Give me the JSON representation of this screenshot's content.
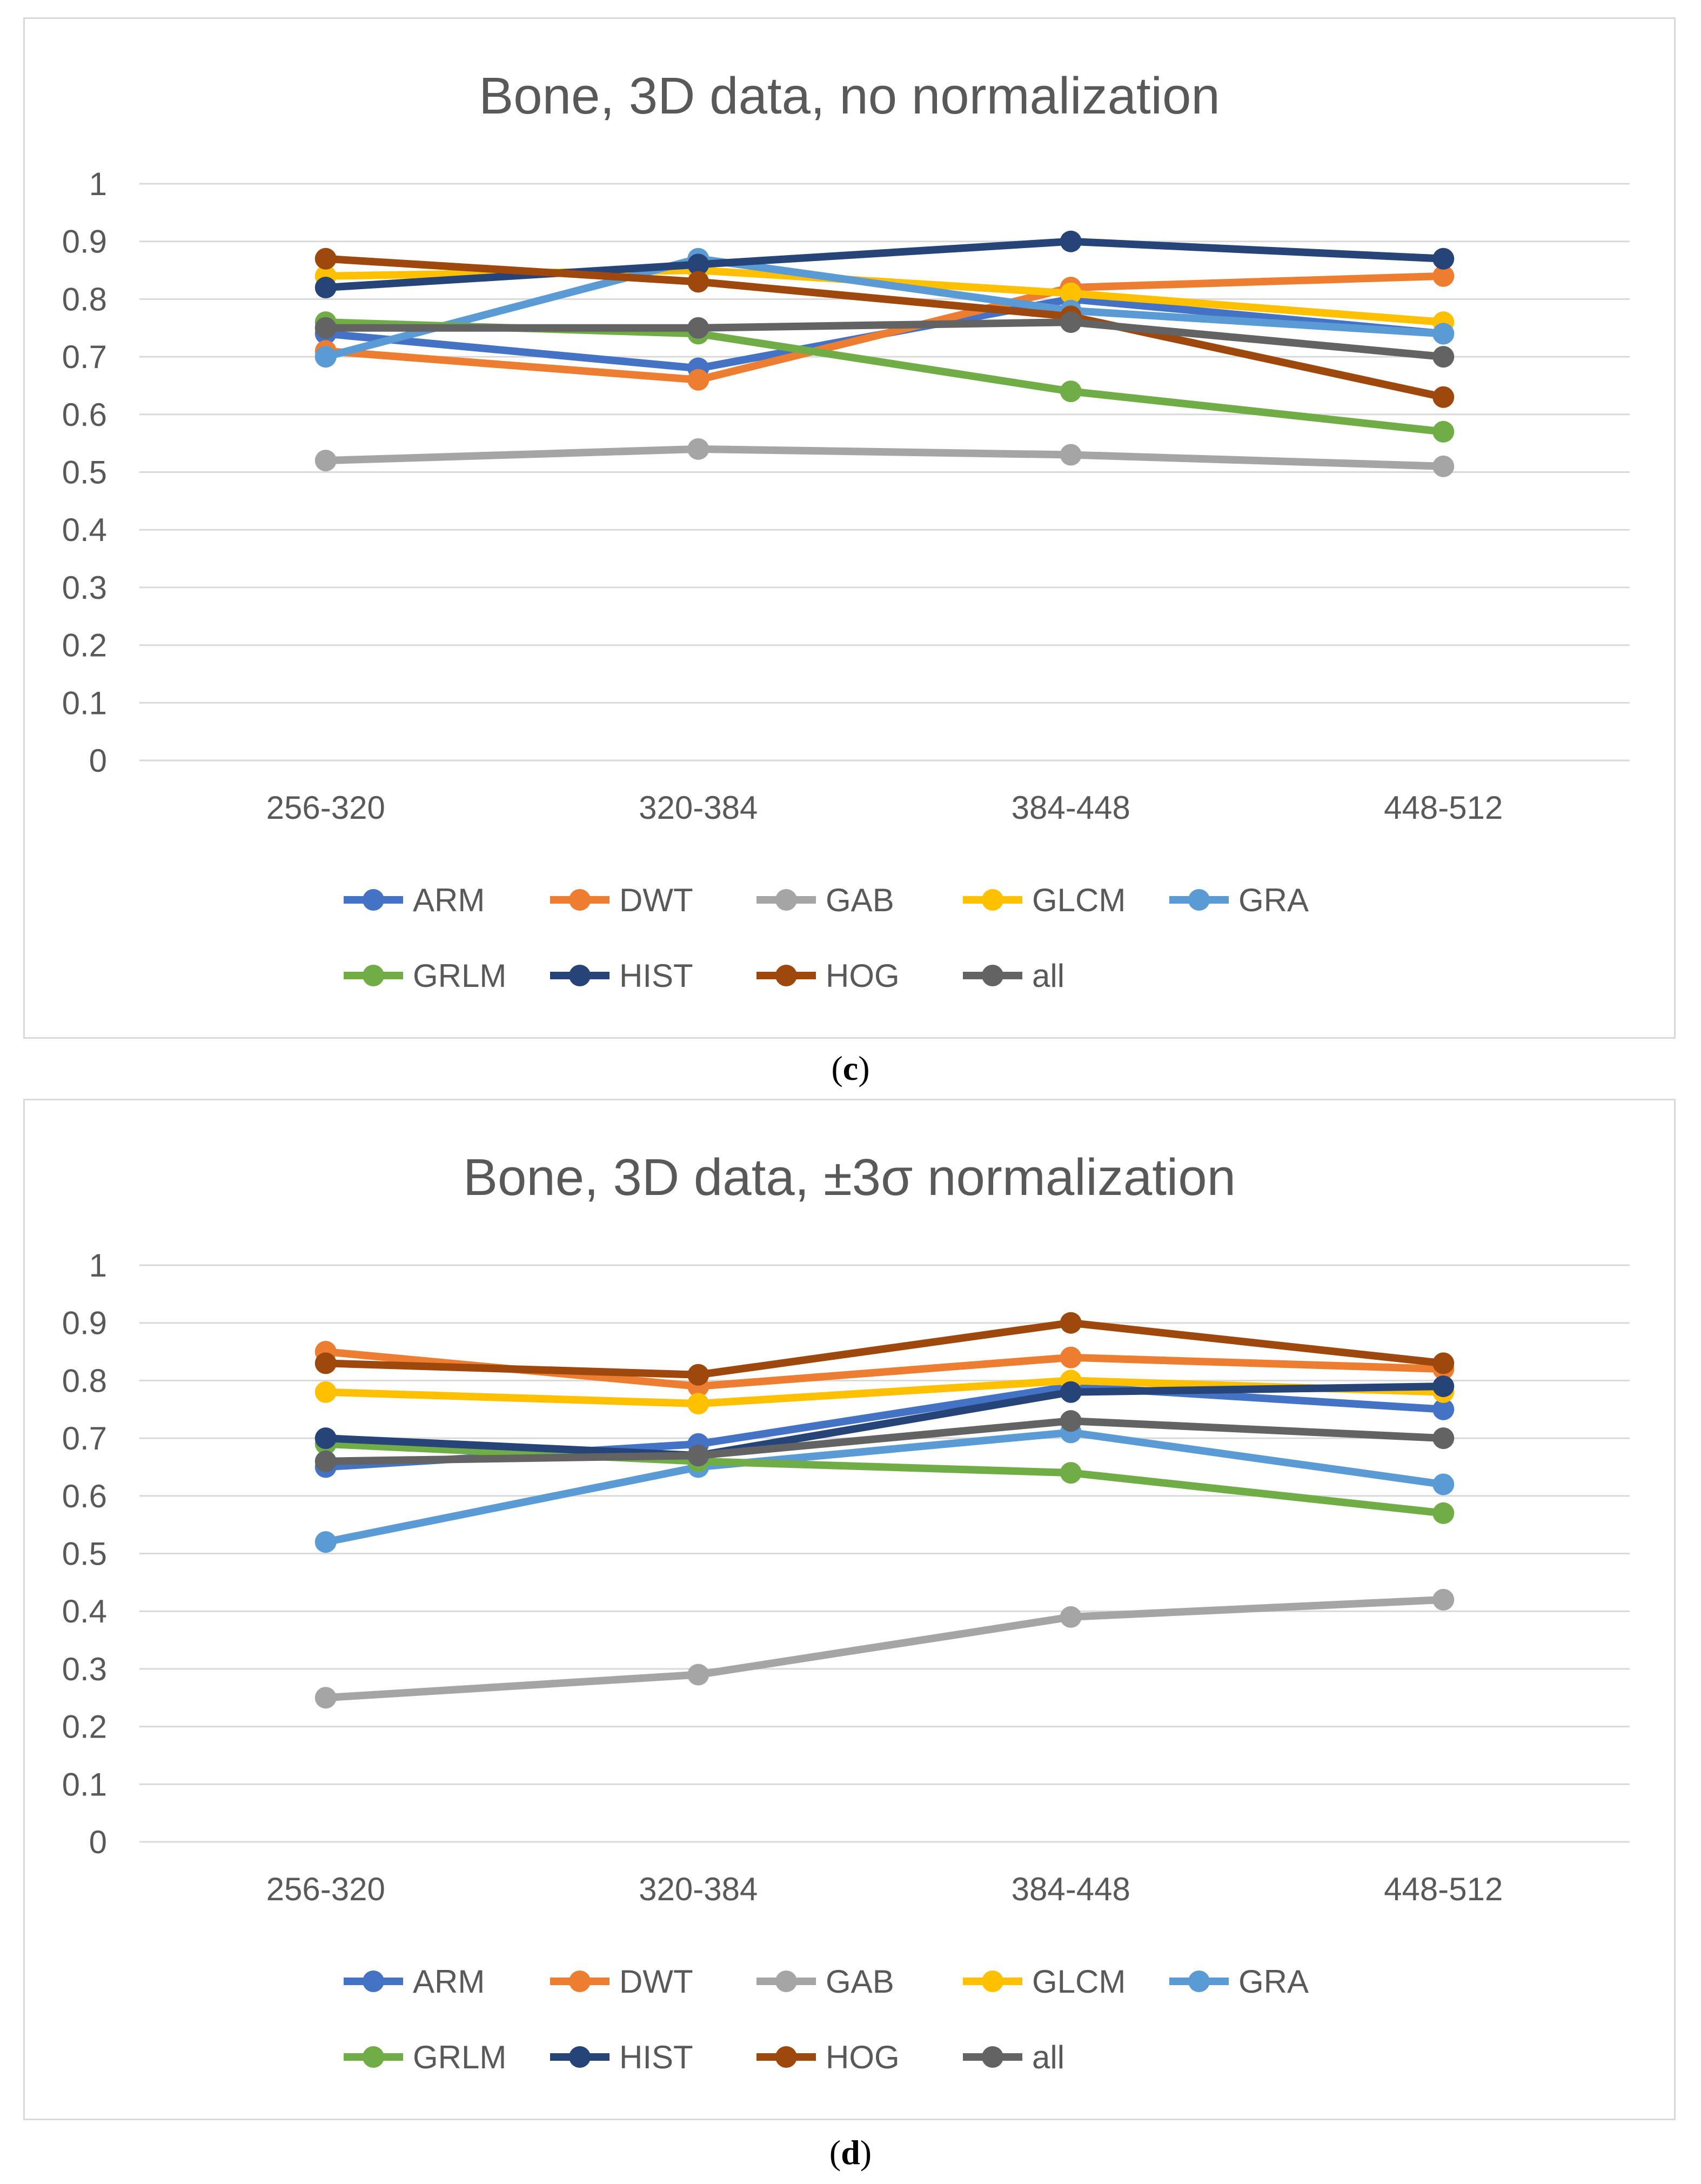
{
  "panel_labels": [
    "c",
    "d"
  ],
  "chart_data": [
    {
      "type": "line",
      "title": "Bone, 3D data, no normalization",
      "xlabel": "",
      "ylabel": "",
      "categories": [
        "256-320",
        "320-384",
        "384-448",
        "448-512"
      ],
      "ylim": [
        0,
        1
      ],
      "yticks": [
        "0",
        "0.1",
        "0.2",
        "0.3",
        "0.4",
        "0.5",
        "0.6",
        "0.7",
        "0.8",
        "0.9",
        "1"
      ],
      "grid": "horizontal",
      "legend_position": "bottom",
      "series": [
        {
          "name": "ARM",
          "color": "#4472C4",
          "values": [
            0.74,
            0.68,
            0.8,
            0.74
          ]
        },
        {
          "name": "DWT",
          "color": "#ED7D31",
          "values": [
            0.71,
            0.66,
            0.82,
            0.84
          ]
        },
        {
          "name": "GAB",
          "color": "#A5A5A5",
          "values": [
            0.52,
            0.54,
            0.53,
            0.51
          ]
        },
        {
          "name": "GLCM",
          "color": "#FFC000",
          "values": [
            0.84,
            0.85,
            0.81,
            0.76
          ]
        },
        {
          "name": "GRA",
          "color": "#5B9BD5",
          "values": [
            0.7,
            0.87,
            0.78,
            0.74
          ]
        },
        {
          "name": "GRLM",
          "color": "#70AD47",
          "values": [
            0.76,
            0.74,
            0.64,
            0.57
          ]
        },
        {
          "name": "HIST",
          "color": "#264478",
          "values": [
            0.82,
            0.86,
            0.9,
            0.87
          ]
        },
        {
          "name": "HOG",
          "color": "#9E480E",
          "values": [
            0.87,
            0.83,
            0.77,
            0.63
          ]
        },
        {
          "name": "all",
          "color": "#636363",
          "values": [
            0.75,
            0.75,
            0.76,
            0.7
          ]
        }
      ]
    },
    {
      "type": "line",
      "title": "Bone, 3D data, ±3σ normalization",
      "xlabel": "",
      "ylabel": "",
      "categories": [
        "256-320",
        "320-384",
        "384-448",
        "448-512"
      ],
      "ylim": [
        0,
        1
      ],
      "yticks": [
        "0",
        "0.1",
        "0.2",
        "0.3",
        "0.4",
        "0.5",
        "0.6",
        "0.7",
        "0.8",
        "0.9",
        "1"
      ],
      "grid": "horizontal",
      "legend_position": "bottom",
      "series": [
        {
          "name": "ARM",
          "color": "#4472C4",
          "values": [
            0.65,
            0.69,
            0.79,
            0.75
          ]
        },
        {
          "name": "DWT",
          "color": "#ED7D31",
          "values": [
            0.85,
            0.79,
            0.84,
            0.82
          ]
        },
        {
          "name": "GAB",
          "color": "#A5A5A5",
          "values": [
            0.25,
            0.29,
            0.39,
            0.42
          ]
        },
        {
          "name": "GLCM",
          "color": "#FFC000",
          "values": [
            0.78,
            0.76,
            0.8,
            0.78
          ]
        },
        {
          "name": "GRA",
          "color": "#5B9BD5",
          "values": [
            0.52,
            0.65,
            0.71,
            0.62
          ]
        },
        {
          "name": "GRLM",
          "color": "#70AD47",
          "values": [
            0.69,
            0.66,
            0.64,
            0.57
          ]
        },
        {
          "name": "HIST",
          "color": "#264478",
          "values": [
            0.7,
            0.67,
            0.78,
            0.79
          ]
        },
        {
          "name": "HOG",
          "color": "#9E480E",
          "values": [
            0.83,
            0.81,
            0.9,
            0.83
          ]
        },
        {
          "name": "all",
          "color": "#636363",
          "values": [
            0.66,
            0.67,
            0.73,
            0.7
          ]
        }
      ]
    }
  ]
}
